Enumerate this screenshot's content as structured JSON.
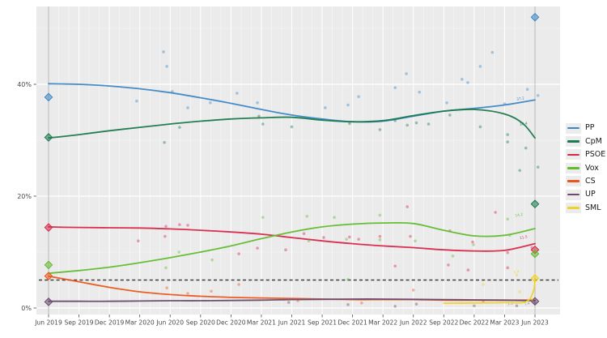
{
  "chart_data": {
    "type": "scatter",
    "title": "",
    "xlabel": "",
    "ylabel": "",
    "x_tick_labels": [
      "Jun 2019",
      "Sep 2019",
      "Dec 2019",
      "Mar 2020",
      "Jun 2020",
      "Sep 2020",
      "Dec 2020",
      "Mar 2021",
      "Jun 2021",
      "Sep 2021",
      "Dec 2021",
      "Mar 2022",
      "Jun 2022",
      "Sep 2022",
      "Dec 2022",
      "Mar 2023",
      "Jun 2023"
    ],
    "y_ticks": [
      {
        "value": 0,
        "label": "0%"
      },
      {
        "value": 20,
        "label": "20%"
      },
      {
        "value": 40,
        "label": "40%"
      }
    ],
    "y_minor_ticks": [
      10,
      30,
      50
    ],
    "ylim": [
      0,
      53.9
    ],
    "grid": true,
    "legend_position": "right",
    "panel_bg": "#ebebeb",
    "gridline_color": "#ffffff",
    "axis_text_color": "#4a4a4a",
    "threshold_line": {
      "value": 5,
      "style": "dashed",
      "color": "#3f3f3f"
    },
    "election_vlines_quarters": [
      0,
      16
    ],
    "election_vline_color": "#b8b8b8",
    "series": [
      {
        "name": "PP",
        "color": "#3d87c7",
        "trend": [
          [
            0,
            40.1
          ],
          [
            1,
            40.0
          ],
          [
            2,
            39.7
          ],
          [
            3,
            39.2
          ],
          [
            4,
            38.5
          ],
          [
            5,
            37.6
          ],
          [
            6,
            36.6
          ],
          [
            7,
            35.5
          ],
          [
            8,
            34.5
          ],
          [
            9,
            33.8
          ],
          [
            10,
            33.3
          ],
          [
            11,
            33.4
          ],
          [
            12,
            34.3
          ],
          [
            13,
            35.2
          ],
          [
            14,
            35.7
          ],
          [
            15,
            36.3
          ],
          [
            16,
            37.2
          ]
        ],
        "scatter": [
          [
            2.9,
            37.0
          ],
          [
            3.78,
            45.8
          ],
          [
            3.89,
            43.2
          ],
          [
            4.07,
            38.7
          ],
          [
            4.58,
            35.8
          ],
          [
            5.32,
            36.7
          ],
          [
            6.2,
            38.4
          ],
          [
            6.87,
            36.7
          ],
          [
            9.1,
            35.8
          ],
          [
            9.85,
            36.3
          ],
          [
            10.2,
            37.8
          ],
          [
            11.4,
            39.4
          ],
          [
            11.77,
            41.9
          ],
          [
            12.2,
            38.6
          ],
          [
            13.1,
            36.7
          ],
          [
            13.6,
            40.9
          ],
          [
            13.79,
            40.3
          ],
          [
            14.2,
            43.2
          ],
          [
            14.6,
            45.7
          ],
          [
            15.0,
            36.5
          ],
          [
            15.75,
            39.1
          ],
          [
            16.1,
            38.0
          ]
        ],
        "elections": [
          [
            0,
            37.7
          ],
          [
            16,
            52.0
          ]
        ],
        "end_label": {
          "q": 15.4,
          "v": 37.1,
          "text": "37.2"
        }
      },
      {
        "name": "CpM",
        "color": "#1b7a4e",
        "trend": [
          [
            0,
            30.4
          ],
          [
            1,
            31.0
          ],
          [
            2,
            31.7
          ],
          [
            3,
            32.3
          ],
          [
            4,
            32.9
          ],
          [
            5,
            33.4
          ],
          [
            6,
            33.8
          ],
          [
            7,
            34.0
          ],
          [
            8,
            34.1
          ],
          [
            9,
            33.6
          ],
          [
            10,
            33.3
          ],
          [
            11,
            33.5
          ],
          [
            12,
            34.4
          ],
          [
            13,
            35.2
          ],
          [
            14,
            35.5
          ],
          [
            15,
            34.7
          ],
          [
            15.6,
            33.0
          ],
          [
            16,
            30.4
          ]
        ],
        "scatter": [
          [
            3.81,
            29.6
          ],
          [
            4.31,
            32.3
          ],
          [
            6.92,
            34.3
          ],
          [
            7.05,
            32.9
          ],
          [
            8.0,
            32.4
          ],
          [
            9.9,
            33.0
          ],
          [
            10.9,
            31.9
          ],
          [
            11.4,
            33.5
          ],
          [
            11.8,
            32.7
          ],
          [
            12.1,
            33.1
          ],
          [
            12.5,
            32.9
          ],
          [
            13.2,
            34.5
          ],
          [
            14.2,
            32.4
          ],
          [
            15.1,
            31.0
          ],
          [
            15.1,
            29.7
          ],
          [
            15.5,
            24.6
          ],
          [
            15.7,
            28.6
          ],
          [
            16.1,
            25.2
          ]
        ],
        "elections": [
          [
            0,
            30.5
          ],
          [
            16,
            18.6
          ]
        ],
        "end_label": {
          "q": 15.5,
          "v": 32.6,
          "text": "30.4"
        }
      },
      {
        "name": "PSOE",
        "color": "#d7284a",
        "trend": [
          [
            0,
            14.5
          ],
          [
            1,
            14.4
          ],
          [
            2,
            14.35
          ],
          [
            3,
            14.3
          ],
          [
            4,
            14.15
          ],
          [
            5,
            13.9
          ],
          [
            6,
            13.6
          ],
          [
            7,
            13.2
          ],
          [
            8,
            12.6
          ],
          [
            9,
            12.0
          ],
          [
            10,
            11.5
          ],
          [
            11,
            11.1
          ],
          [
            12,
            10.8
          ],
          [
            13,
            10.4
          ],
          [
            14,
            10.2
          ],
          [
            15,
            10.3
          ],
          [
            16,
            11.5
          ]
        ],
        "scatter": [
          [
            2.95,
            12.0
          ],
          [
            3.83,
            12.8
          ],
          [
            3.86,
            14.6
          ],
          [
            4.31,
            14.9
          ],
          [
            4.58,
            14.8
          ],
          [
            6.26,
            9.7
          ],
          [
            6.87,
            10.7
          ],
          [
            7.8,
            10.4
          ],
          [
            8.4,
            13.3
          ],
          [
            9.05,
            12.6
          ],
          [
            9.9,
            12.7
          ],
          [
            10.2,
            12.3
          ],
          [
            10.9,
            12.8
          ],
          [
            11.4,
            7.5
          ],
          [
            11.8,
            18.1
          ],
          [
            11.9,
            12.8
          ],
          [
            13.15,
            7.7
          ],
          [
            13.2,
            13.8
          ],
          [
            13.8,
            6.8
          ],
          [
            13.95,
            11.8
          ],
          [
            14.7,
            17.1
          ],
          [
            15.1,
            9.9
          ],
          [
            15.1,
            7.2
          ],
          [
            15.9,
            10.8
          ]
        ],
        "elections": [
          [
            0,
            14.4
          ],
          [
            16,
            10.4
          ]
        ],
        "end_label": {
          "q": 15.5,
          "v": 12.3,
          "text": "11.5"
        }
      },
      {
        "name": "Vox",
        "color": "#63bb2f",
        "trend": [
          [
            0,
            6.2
          ],
          [
            1,
            6.7
          ],
          [
            2,
            7.3
          ],
          [
            3,
            8.1
          ],
          [
            4,
            9.0
          ],
          [
            5,
            10.0
          ],
          [
            6,
            11.1
          ],
          [
            7,
            12.4
          ],
          [
            8,
            13.6
          ],
          [
            9,
            14.5
          ],
          [
            10,
            15.0
          ],
          [
            11,
            15.2
          ],
          [
            12,
            15.1
          ],
          [
            13,
            13.9
          ],
          [
            14,
            12.9
          ],
          [
            15,
            13.0
          ],
          [
            16,
            14.2
          ]
        ],
        "scatter": [
          [
            3.86,
            7.2
          ],
          [
            4.29,
            10.0
          ],
          [
            5.38,
            8.6
          ],
          [
            7.05,
            16.2
          ],
          [
            8.5,
            16.4
          ],
          [
            8.56,
            12.0
          ],
          [
            9.4,
            16.2
          ],
          [
            9.8,
            12.3
          ],
          [
            9.85,
            5.1
          ],
          [
            10.9,
            16.6
          ],
          [
            10.9,
            12.2
          ],
          [
            12.06,
            12.0
          ],
          [
            13.3,
            9.3
          ],
          [
            13.98,
            11.3
          ],
          [
            15.1,
            15.9
          ],
          [
            15.17,
            13.0
          ]
        ],
        "elections": [
          [
            0,
            7.7
          ],
          [
            16,
            9.7
          ]
        ],
        "end_label": {
          "q": 15.35,
          "v": 16.3,
          "text": "14.2"
        }
      },
      {
        "name": "CS",
        "color": "#e8581d",
        "trend": [
          [
            0,
            5.7
          ],
          [
            1,
            4.7
          ],
          [
            2,
            3.7
          ],
          [
            3,
            2.9
          ],
          [
            4,
            2.4
          ],
          [
            5,
            2.1
          ],
          [
            6,
            1.9
          ],
          [
            7,
            1.8
          ],
          [
            8,
            1.7
          ],
          [
            9,
            1.6
          ],
          [
            10,
            1.5
          ],
          [
            11,
            1.5
          ],
          [
            12,
            1.5
          ],
          [
            13,
            1.4
          ],
          [
            14,
            1.4
          ],
          [
            15,
            1.4
          ],
          [
            16,
            1.4
          ]
        ],
        "scatter": [
          [
            3.89,
            3.6
          ],
          [
            4.58,
            2.6
          ],
          [
            5.35,
            3.0
          ],
          [
            6.26,
            4.2
          ],
          [
            8.2,
            1.3
          ],
          [
            10.3,
            0.9
          ],
          [
            12.0,
            3.2
          ],
          [
            14.3,
            1.2
          ]
        ],
        "elections": [
          [
            0,
            5.7
          ]
        ],
        "end_label": {
          "q": 15.65,
          "v": 0.5,
          "text": "1.4"
        }
      },
      {
        "name": "UP",
        "color": "#6b4a6d",
        "trend": [
          [
            0,
            1.2
          ],
          [
            1,
            1.2
          ],
          [
            2,
            1.2
          ],
          [
            3,
            1.25
          ],
          [
            4,
            1.3
          ],
          [
            5,
            1.3
          ],
          [
            6,
            1.35
          ],
          [
            7,
            1.4
          ],
          [
            8,
            1.5
          ],
          [
            9,
            1.55
          ],
          [
            10,
            1.6
          ],
          [
            11,
            1.6
          ],
          [
            12,
            1.55
          ],
          [
            13,
            1.5
          ],
          [
            14,
            1.45
          ],
          [
            15,
            1.4
          ],
          [
            16,
            1.3
          ]
        ],
        "scatter": [
          [
            7.9,
            1.0
          ],
          [
            9.85,
            0.6
          ],
          [
            11.4,
            0.3
          ],
          [
            12.1,
            0.7
          ],
          [
            14.0,
            0.4
          ],
          [
            15.4,
            0.4
          ],
          [
            16.0,
            0.9
          ]
        ],
        "elections": [
          [
            0,
            1.1
          ],
          [
            16,
            1.2
          ]
        ],
        "end_label": {
          "q": 15.1,
          "v": 0.5,
          "text": "1.3"
        }
      },
      {
        "name": "SML",
        "color": "#efd22c",
        "trend": [
          [
            13,
            0.85
          ],
          [
            14,
            0.9
          ],
          [
            15,
            0.95
          ],
          [
            15.7,
            1.1
          ],
          [
            15.95,
            3.0
          ],
          [
            16,
            5.4
          ]
        ],
        "scatter": [
          [
            14.3,
            4.2
          ],
          [
            15.4,
            5.9
          ],
          [
            15.5,
            2.9
          ],
          [
            15.9,
            1.5
          ]
        ],
        "elections": [
          [
            16,
            5.3
          ]
        ],
        "end_label": {
          "q": 15.3,
          "v": 6.2,
          "text": "5.4"
        }
      }
    ]
  },
  "legend": {
    "items": [
      {
        "label": "PP",
        "color": "#3d87c7"
      },
      {
        "label": "CpM",
        "color": "#1b7a4e"
      },
      {
        "label": "PSOE",
        "color": "#d7284a"
      },
      {
        "label": "Vox",
        "color": "#63bb2f"
      },
      {
        "label": "CS",
        "color": "#e8581d"
      },
      {
        "label": "UP",
        "color": "#6b4a6d"
      },
      {
        "label": "SML",
        "color": "#efd22c"
      }
    ]
  }
}
